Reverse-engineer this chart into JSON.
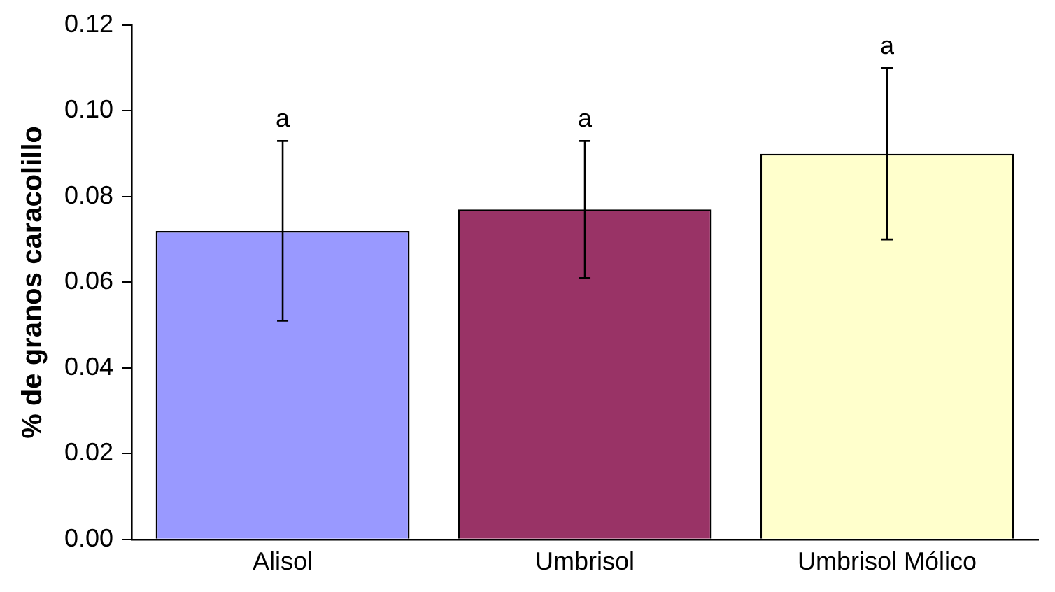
{
  "chart_data": {
    "type": "bar",
    "ylabel": "% de granos caracolillo",
    "categories": [
      "Alisol",
      "Umbrisol",
      "Umbrisol Mólico"
    ],
    "values": [
      0.072,
      0.077,
      0.09
    ],
    "colors": [
      "#9999ff",
      "#993366",
      "#ffffcc"
    ],
    "errors": [
      0.021,
      0.016,
      0.02
    ],
    "ylim": [
      0,
      0.12
    ],
    "yticks": [
      {
        "value": 0,
        "label": "0.00"
      },
      {
        "value": 0.02,
        "label": "0.02"
      },
      {
        "value": 0.04,
        "label": "0.04"
      },
      {
        "value": 0.06,
        "label": "0.06"
      },
      {
        "value": 0.08,
        "label": "0.08"
      },
      {
        "value": 0.1,
        "label": "0.10"
      },
      {
        "value": 0.12,
        "label": "0.12"
      }
    ],
    "annotations": [
      "a",
      "a",
      "a"
    ],
    "grid": false,
    "legend": false
  }
}
